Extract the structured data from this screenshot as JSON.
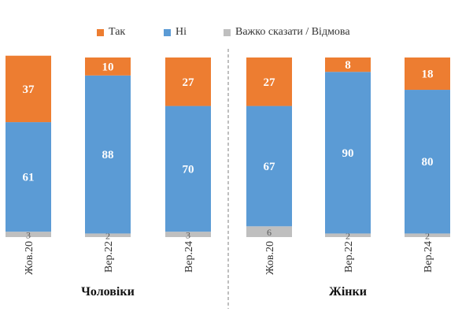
{
  "chart_data": {
    "type": "bar",
    "stacked": true,
    "ylim": [
      0,
      100
    ],
    "series": [
      {
        "name": "Так",
        "color": "#ED7D31"
      },
      {
        "name": "Ні",
        "color": "#5B9BD5"
      },
      {
        "name": "Важко сказати / Відмова",
        "color": "#BFBFBF"
      }
    ],
    "groups": [
      {
        "label": "Чоловіки",
        "bars": [
          {
            "category": "Жов.20",
            "values": [
              37,
              61,
              3
            ]
          },
          {
            "category": "Вер.22",
            "values": [
              10,
              88,
              2
            ]
          },
          {
            "category": "Вер.24",
            "values": [
              27,
              70,
              3
            ]
          }
        ]
      },
      {
        "label": "Жінки",
        "bars": [
          {
            "category": "Жов.20",
            "values": [
              27,
              67,
              6
            ]
          },
          {
            "category": "Вер.22",
            "values": [
              8,
              90,
              2
            ]
          },
          {
            "category": "Вер.24",
            "values": [
              18,
              80,
              2
            ]
          }
        ]
      }
    ],
    "legend_position": "top",
    "grid": false
  }
}
